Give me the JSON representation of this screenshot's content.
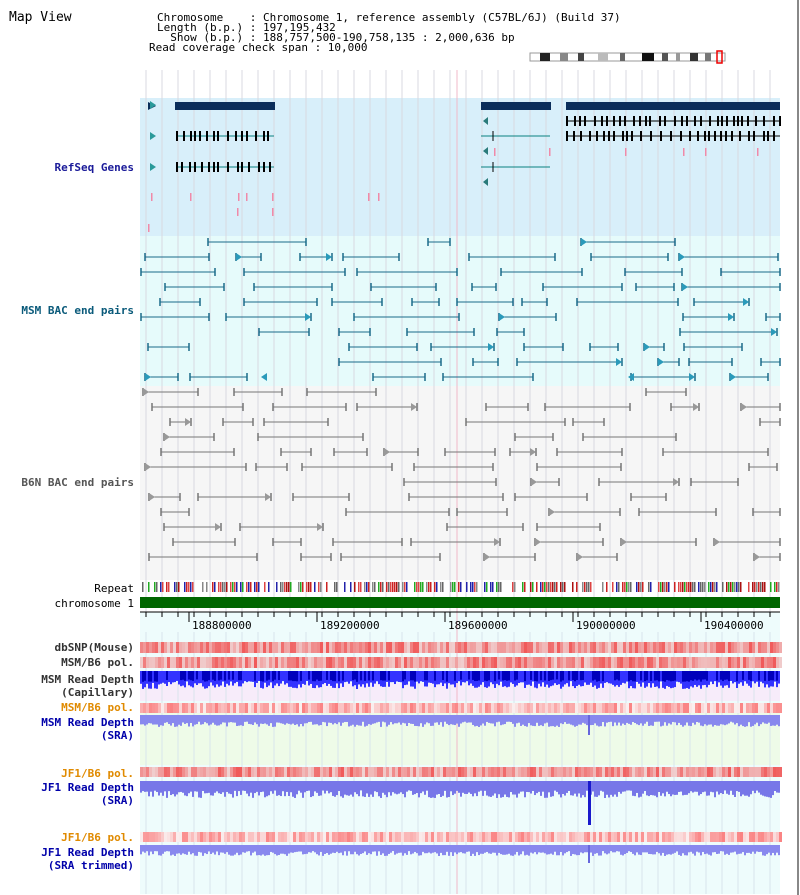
{
  "panel_title": "Map View",
  "header": {
    "chromosome_line": "Chromosome    : Chromosome 1, reference assembly (C57BL/6J) (Build 37)",
    "length_line": "Length (b.p.) : 197,195,432",
    "show_line": "  Show (b.p.) : 188,757,500-190,758,135 : 2,000,636 bp",
    "coverage_line": "Read coverage check span : 10,000"
  },
  "tracks": {
    "refseq": "RefSeq Genes",
    "msm_bac": "MSM BAC end pairs",
    "b6n_bac": "B6N BAC end pairs",
    "repeat": "Repeat",
    "chromosome": "chromosome 1",
    "dbsnp": "dbSNP(Mouse)",
    "msm_b6_pol": "MSM/B6 pol.",
    "msm_depth_cap_1": "MSM Read Depth",
    "msm_depth_cap_2": "(Capillary)",
    "msm_b6_pol_2": "MSM/B6 pol.",
    "msm_depth_sra_1": "MSM Read Depth",
    "msm_depth_sra_2": "(SRA)",
    "jf1_b6_pol": "JF1/B6 pol.",
    "jf1_depth_sra_1": "JF1 Read Depth",
    "jf1_depth_sra_2": "(SRA)",
    "jf1_b6_pol_2": "JF1/B6 pol.",
    "jf1_depth_trim_1": "JF1 Read Depth",
    "jf1_depth_trim_2": "(SRA trimmed)"
  },
  "axis_ticks": [
    "188800000",
    "189200000",
    "189600000",
    "190000000",
    "190400000"
  ],
  "colors": {
    "refseq_label": "#1a1a99",
    "msm_label": "#0a5a7a",
    "b6n_label": "#555555",
    "pol_label": "#e08a00",
    "depth_label": "#0000aa",
    "dbsnp_label": "#333333"
  }
}
